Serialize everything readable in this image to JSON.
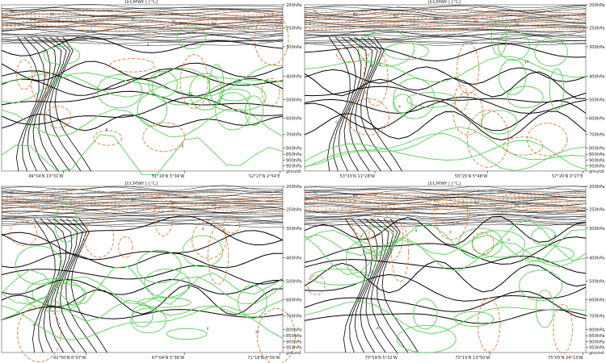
{
  "chart_data": [
    {
      "type": "cross-section",
      "title": "[ECMWF] [°C]",
      "y_axis": {
        "label": "",
        "ticks": [
          "200hPa",
          "250hPa",
          "300hPa",
          "400hPa",
          "500hPa",
          "600hPa",
          "700hPa",
          "800hPa",
          "850hPa",
          "900hPa",
          "950hPa",
          "ground"
        ],
        "tick_values": [
          200,
          250,
          300,
          400,
          500,
          600,
          700,
          800,
          850,
          900,
          950,
          1000
        ]
      },
      "x_ticks": [
        "49°34'N 13°31'W",
        "51°18'N 5°34'W",
        "52°27'N 2°54'E"
      ],
      "x_tick_positions": [
        0.22,
        0.65,
        0.99
      ],
      "isotach_tops": [
        0.1,
        0.25,
        0.3,
        0.35,
        0.43,
        0.5,
        0.56
      ],
      "isotach_labels": [
        "70",
        "60",
        "50",
        "40",
        "30",
        "20"
      ],
      "contour_labels": [
        "-8",
        "-4",
        "0",
        "4",
        "8",
        "12"
      ],
      "series": [
        {
          "name": "",
          "color": "#000000"
        },
        {
          "name": "",
          "color": "#e07b39"
        },
        {
          "name": "",
          "color": "#55d055"
        }
      ]
    },
    {
      "type": "cross-section",
      "title": "[ECMWF] [°C]",
      "y_axis": {
        "label": "",
        "ticks": [
          "200hPa",
          "250hPa",
          "300hPa",
          "400hPa",
          "500hPa",
          "600hPa",
          "700hPa",
          "800hPa",
          "850hPa",
          "900hPa",
          "950hPa",
          "ground"
        ],
        "tick_values": [
          200,
          250,
          300,
          400,
          500,
          600,
          700,
          800,
          850,
          900,
          950,
          1000
        ]
      },
      "x_ticks": [
        "53°33'N 11°28'W",
        "55°25'N 5°48'W",
        "57°20'N 0°27'E"
      ],
      "x_tick_positions": [
        0.25,
        0.65,
        0.99
      ],
      "isotach_tops": [
        0.14,
        0.28,
        0.34,
        0.4,
        0.46,
        0.52,
        0.58
      ],
      "isotach_labels": [
        "70",
        "60",
        "50",
        "40",
        "30",
        "20"
      ],
      "contour_labels": [
        "-8",
        "-4",
        "0",
        "4",
        "8",
        "12"
      ],
      "series": [
        {
          "name": "",
          "color": "#000000"
        },
        {
          "name": "",
          "color": "#e07b39"
        },
        {
          "name": "",
          "color": "#55d055"
        }
      ]
    },
    {
      "type": "cross-section",
      "title": "[ECMWF] [°C]",
      "y_axis": {
        "label": "",
        "ticks": [
          "200hPa",
          "250hPa",
          "300hPa",
          "400hPa",
          "500hPa",
          "600hPa",
          "700hPa",
          "800hPa",
          "850hPa",
          "900hPa",
          "950hPa",
          "ground"
        ],
        "tick_values": [
          200,
          250,
          300,
          400,
          500,
          600,
          700,
          800,
          850,
          900,
          950,
          1000
        ]
      },
      "x_ticks": [
        "62°50'N 6°07'W",
        "67°04'N 5°36'W",
        "71°18'N 4°56'W"
      ],
      "x_tick_positions": [
        0.3,
        0.65,
        0.99
      ],
      "isotach_tops": [
        0.12,
        0.22,
        0.3,
        0.38,
        0.46,
        0.54,
        0.62
      ],
      "isotach_labels": [
        "70",
        "60",
        "50",
        "40",
        "30",
        "20"
      ],
      "contour_labels": [
        "-8",
        "-4",
        "0",
        "4",
        "8",
        "12"
      ],
      "series": [
        {
          "name": "",
          "color": "#000000"
        },
        {
          "name": "",
          "color": "#e07b39"
        },
        {
          "name": "",
          "color": "#55d055"
        }
      ]
    },
    {
      "type": "cross-section",
      "title": "[ECMWF] [°C]",
      "y_axis": {
        "label": "",
        "ticks": [
          "200hPa",
          "250hPa",
          "300hPa",
          "400hPa",
          "500hPa",
          "600hPa",
          "700hPa",
          "800hPa",
          "850hPa",
          "900hPa",
          "950hPa",
          "ground"
        ],
        "tick_values": [
          200,
          250,
          300,
          400,
          500,
          600,
          700,
          800,
          850,
          900,
          950,
          1000
        ]
      },
      "x_ticks": [
        "70°59'N 5°32'W",
        "73°15'N 13°50'W",
        "75°05'N 24°13'W"
      ],
      "x_tick_positions": [
        0.33,
        0.66,
        0.99
      ],
      "isotach_tops": [
        0.12,
        0.24,
        0.32,
        0.4,
        0.48,
        0.56,
        0.64
      ],
      "isotach_labels": [
        "70",
        "60",
        "50",
        "40",
        "30",
        "20"
      ],
      "contour_labels": [
        "-8",
        "-4",
        "0",
        "4",
        "8",
        "12"
      ],
      "series": [
        {
          "name": "",
          "color": "#000000"
        },
        {
          "name": "",
          "color": "#e07b39"
        },
        {
          "name": "",
          "color": "#55d055"
        }
      ]
    }
  ]
}
